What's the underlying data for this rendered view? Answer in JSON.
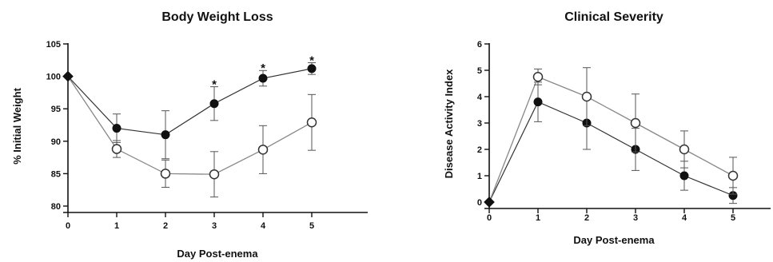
{
  "chart_data": [
    {
      "type": "line",
      "title": "Body Weight Loss",
      "xlabel": "Day Post-enema",
      "ylabel": "% Initial Weight",
      "x": [
        0,
        1,
        2,
        3,
        4,
        5
      ],
      "xlim": [
        0,
        6
      ],
      "ylim": [
        80,
        105
      ],
      "yticks": [
        80,
        85,
        90,
        95,
        100,
        105
      ],
      "grid": false,
      "series": [
        {
          "marker": "filled-circle",
          "color": "#111111",
          "values": [
            100,
            92,
            91,
            95.8,
            99.7,
            101.2
          ],
          "error": [
            0,
            2.2,
            3.7,
            2.6,
            1.2,
            0.9
          ]
        },
        {
          "marker": "open-circle",
          "color": "#555555",
          "values": [
            100,
            88.8,
            85,
            84.9,
            88.7,
            92.9
          ],
          "error": [
            0,
            1.3,
            2.1,
            3.5,
            3.7,
            4.3
          ]
        }
      ],
      "annotations": [
        {
          "text": "*",
          "x": 3,
          "y": 98.9
        },
        {
          "text": "*",
          "x": 4,
          "y": 101.4
        },
        {
          "text": "*",
          "x": 5,
          "y": 102.6
        }
      ]
    },
    {
      "type": "line",
      "title": "Clinical Severity",
      "xlabel": "Day Post-enema",
      "ylabel": "Disease Activity Index",
      "x": [
        0,
        1,
        2,
        3,
        4,
        5
      ],
      "xlim": [
        0,
        6
      ],
      "ylim": [
        0,
        6
      ],
      "yticks": [
        0,
        1,
        2,
        3,
        4,
        5,
        6
      ],
      "grid": false,
      "series": [
        {
          "marker": "filled-circle",
          "color": "#111111",
          "values": [
            0,
            3.8,
            3.0,
            2.0,
            1.0,
            0.25
          ],
          "error": [
            0,
            0.75,
            1.0,
            0.8,
            0.55,
            0.3
          ]
        },
        {
          "marker": "open-circle",
          "color": "#777777",
          "values": [
            0,
            4.75,
            4.0,
            3.0,
            2.0,
            1.0
          ],
          "error": [
            0,
            0.3,
            1.1,
            1.1,
            0.7,
            0.7
          ]
        }
      ]
    }
  ]
}
